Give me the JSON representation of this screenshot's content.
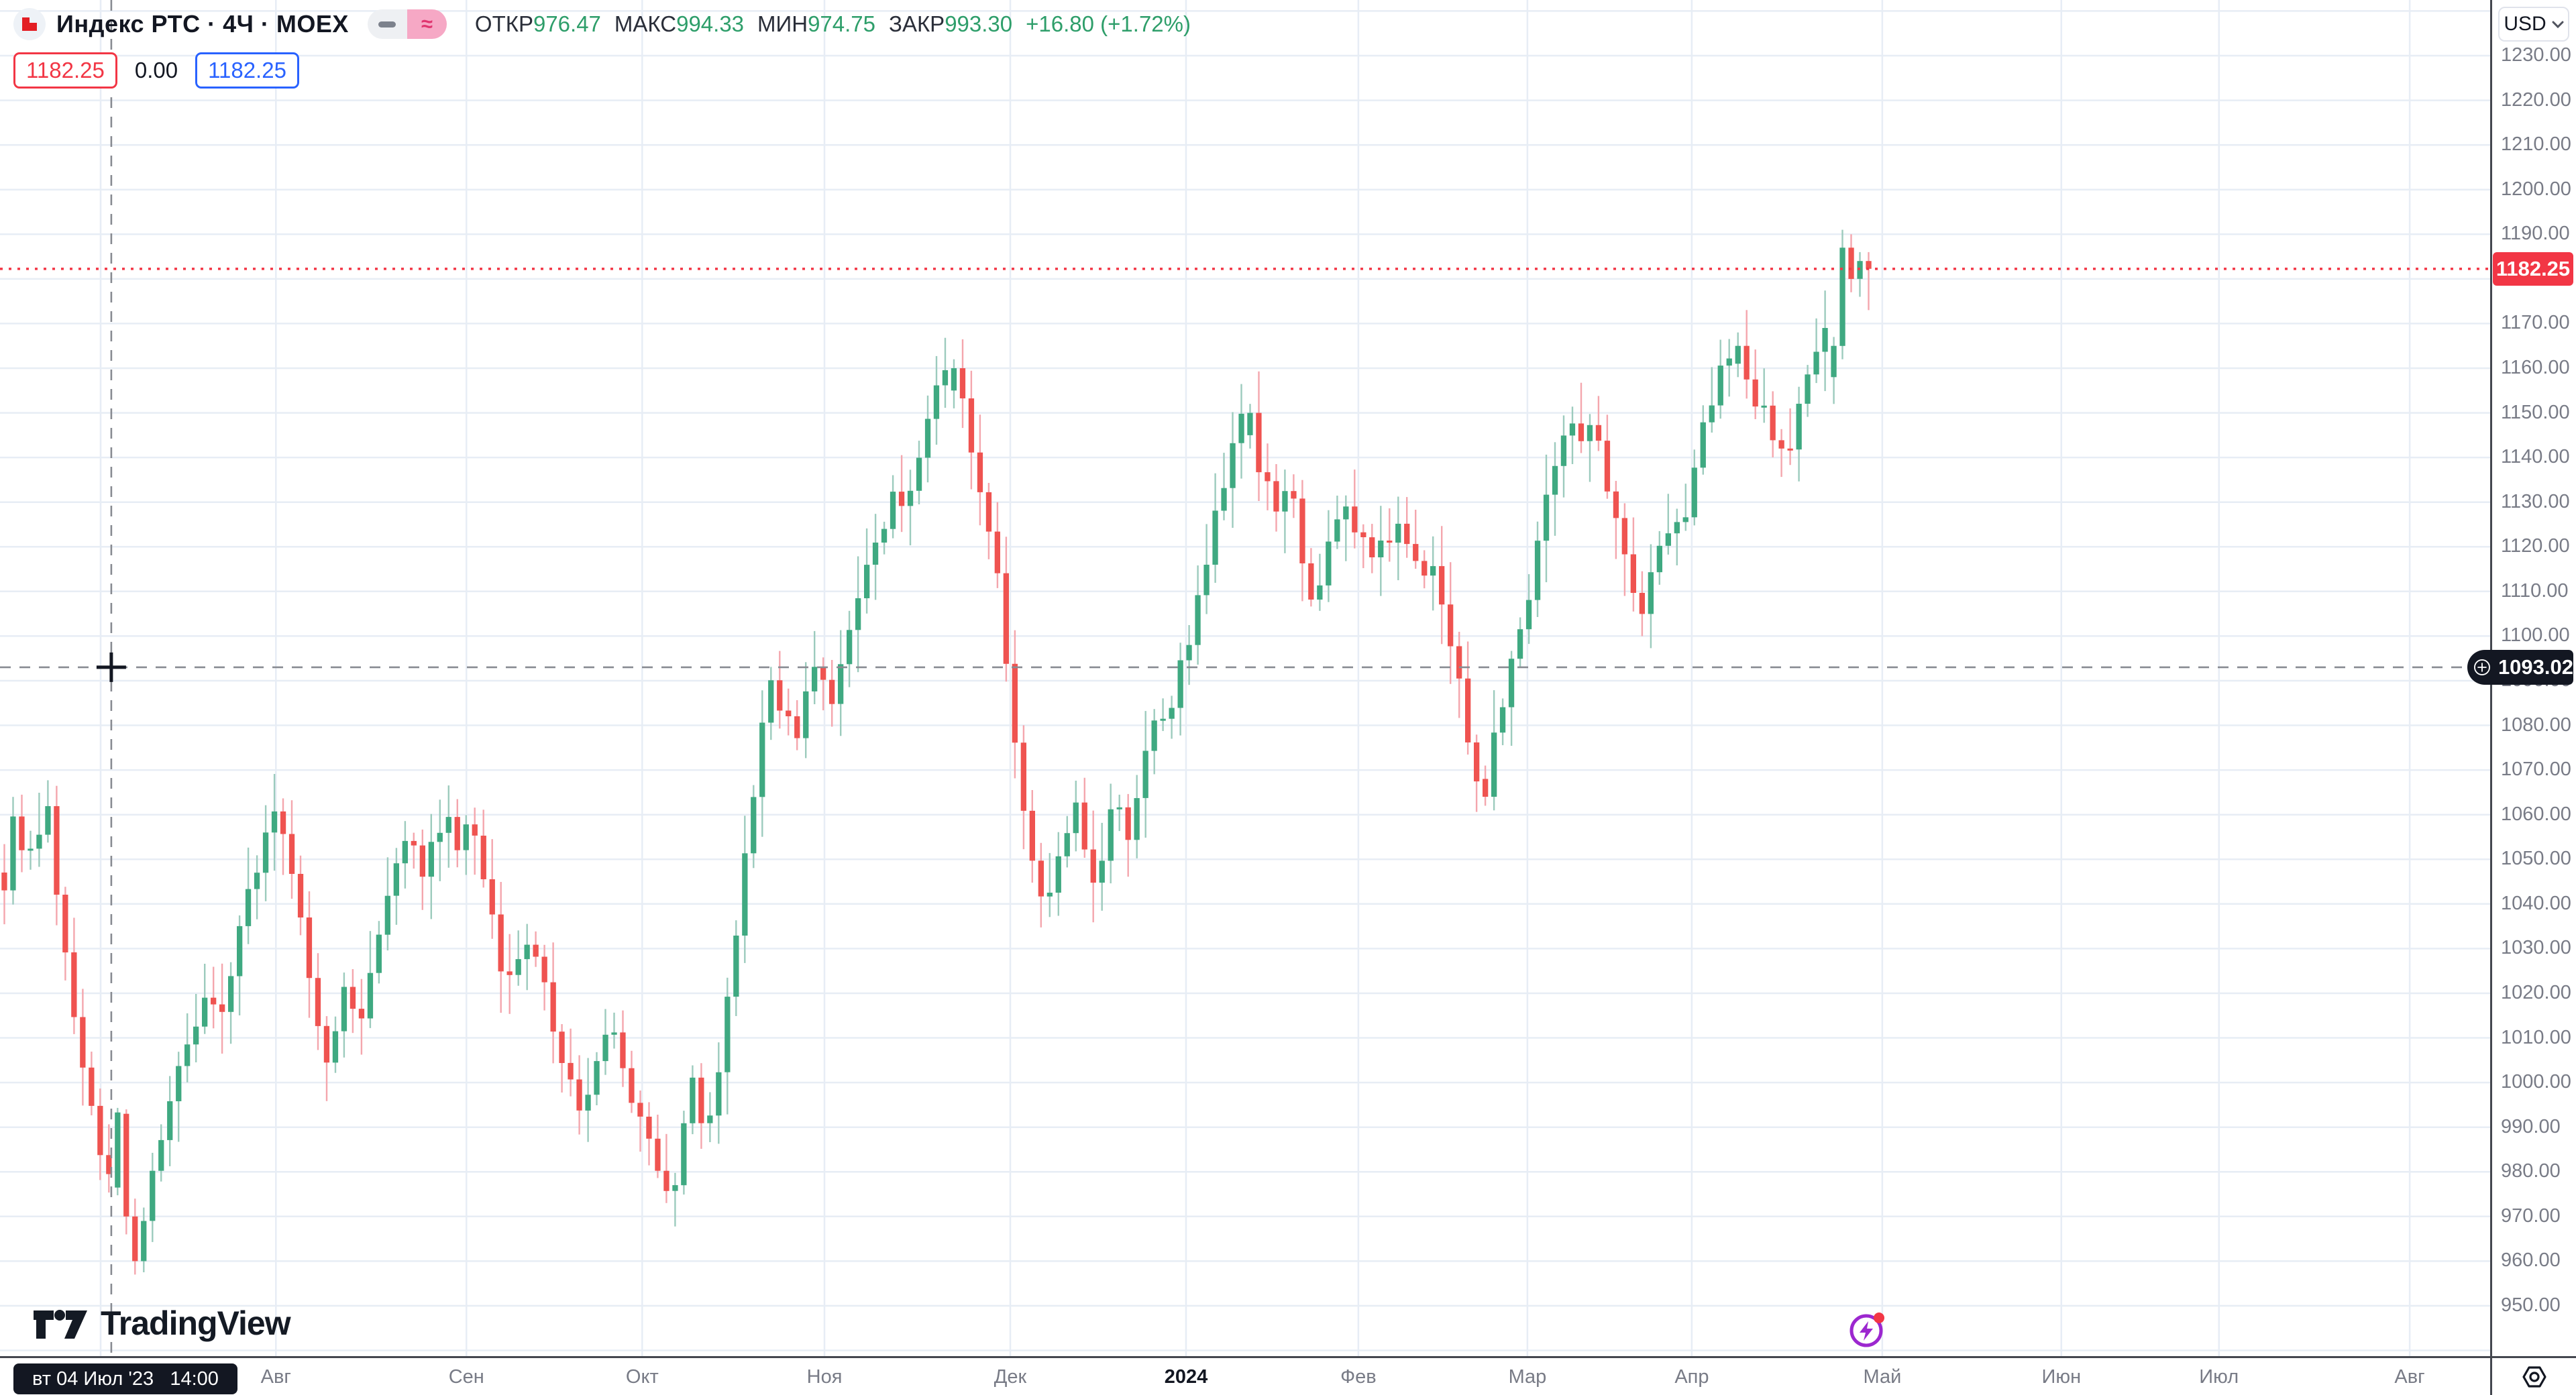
{
  "header": {
    "symbol_title": "Индекс РТС · 4Ч · MOEX",
    "chips": {
      "left_glyph": "",
      "right_glyph": "≈"
    },
    "ohlc": {
      "fields": [
        {
          "label": "ОТКР",
          "value": "976.47"
        },
        {
          "label": "МАКС",
          "value": "994.33"
        },
        {
          "label": "МИН",
          "value": "974.75"
        },
        {
          "label": "ЗАКР",
          "value": "993.30"
        }
      ],
      "change": "+16.80 (+1.72%)"
    },
    "row2": {
      "sell_value": "1182.25",
      "spread_value": "0.00",
      "buy_value": "1182.25"
    }
  },
  "price_scale": {
    "currency": "USD",
    "ticks": [
      "1230.00",
      "1220.00",
      "1210.00",
      "1200.00",
      "1190.00",
      "1180.00",
      "1170.00",
      "1160.00",
      "1150.00",
      "1140.00",
      "1130.00",
      "1120.00",
      "1110.00",
      "1100.00",
      "1090.00",
      "1080.00",
      "1070.00",
      "1060.00",
      "1050.00",
      "1040.00",
      "1030.00",
      "1020.00",
      "1010.00",
      "1000.00",
      "990.00",
      "980.00",
      "970.00",
      "960.00",
      "950.00"
    ],
    "last_price_label": "1182.25",
    "crosshair_price_label": "1093.02"
  },
  "time_scale": {
    "ticks": [
      {
        "label": "",
        "x": 0.0404
      },
      {
        "label": "Авг",
        "x": 0.1108
      },
      {
        "label": "Сен",
        "x": 0.1873
      },
      {
        "label": "Окт",
        "x": 0.2579
      },
      {
        "label": "Ноя",
        "x": 0.3311
      },
      {
        "label": "Дек",
        "x": 0.4057
      },
      {
        "label": "2024",
        "x": 0.4763,
        "bold": true
      },
      {
        "label": "Фев",
        "x": 0.5455
      },
      {
        "label": "Мар",
        "x": 0.6134
      },
      {
        "label": "Апр",
        "x": 0.6794
      },
      {
        "label": "Май",
        "x": 0.7559
      },
      {
        "label": "Июн",
        "x": 0.8278
      },
      {
        "label": "Июл",
        "x": 0.8911
      },
      {
        "label": "Авг",
        "x": 0.9677
      }
    ],
    "crosshair_time_label": "вт 04 Июл '23   14:00"
  },
  "watermark": "TradingView",
  "chart_data": {
    "type": "candlestick",
    "title": "Индекс РТС",
    "timeframe": "4Ч",
    "exchange": "MOEX",
    "currency": "USD",
    "ylim": [
      938,
      1242
    ],
    "grid": true,
    "last_price": 1182.25,
    "crosshair": {
      "price": 1093.02,
      "x_frac": 0.0447,
      "time": "вт 04 Июл '23 14:00"
    },
    "hovered_bar": {
      "open": 976.47,
      "high": 994.33,
      "low": 974.75,
      "close": 993.3,
      "change": "+16.80 (+1.72%)"
    },
    "num_bars": 215,
    "close_waypoints": [
      [
        0,
        1045
      ],
      [
        0.005,
        1058
      ],
      [
        0.011,
        1048
      ],
      [
        0.018,
        1056
      ],
      [
        0.023,
        1062
      ],
      [
        0.028,
        1044
      ],
      [
        0.032,
        1030
      ],
      [
        0.037,
        1015
      ],
      [
        0.042,
        1002
      ],
      [
        0.048,
        993
      ],
      [
        0.054,
        976
      ],
      [
        0.06,
        990
      ],
      [
        0.064,
        968
      ],
      [
        0.068,
        958
      ],
      [
        0.074,
        970
      ],
      [
        0.079,
        980
      ],
      [
        0.088,
        995
      ],
      [
        0.098,
        1008
      ],
      [
        0.107,
        1018
      ],
      [
        0.116,
        1015
      ],
      [
        0.125,
        1032
      ],
      [
        0.133,
        1046
      ],
      [
        0.145,
        1060
      ],
      [
        0.151,
        1056
      ],
      [
        0.16,
        1035
      ],
      [
        0.168,
        1012
      ],
      [
        0.175,
        1004
      ],
      [
        0.182,
        1022
      ],
      [
        0.189,
        1012
      ],
      [
        0.2,
        1032
      ],
      [
        0.209,
        1050
      ],
      [
        0.218,
        1058
      ],
      [
        0.224,
        1048
      ],
      [
        0.23,
        1056
      ],
      [
        0.237,
        1060
      ],
      [
        0.244,
        1052
      ],
      [
        0.251,
        1060
      ],
      [
        0.259,
        1042
      ],
      [
        0.268,
        1020
      ],
      [
        0.274,
        1028
      ],
      [
        0.281,
        1032
      ],
      [
        0.289,
        1022
      ],
      [
        0.298,
        1005
      ],
      [
        0.309,
        995
      ],
      [
        0.318,
        1003
      ],
      [
        0.325,
        1016
      ],
      [
        0.333,
        1000
      ],
      [
        0.342,
        990
      ],
      [
        0.351,
        982
      ],
      [
        0.358,
        975
      ],
      [
        0.364,
        988
      ],
      [
        0.37,
        1004
      ],
      [
        0.375,
        985
      ],
      [
        0.382,
        998
      ],
      [
        0.389,
        1022
      ],
      [
        0.396,
        1048
      ],
      [
        0.405,
        1075
      ],
      [
        0.412,
        1090
      ],
      [
        0.419,
        1082
      ],
      [
        0.426,
        1078
      ],
      [
        0.433,
        1096
      ],
      [
        0.439,
        1088
      ],
      [
        0.446,
        1085
      ],
      [
        0.452,
        1100
      ],
      [
        0.458,
        1110
      ],
      [
        0.465,
        1118
      ],
      [
        0.472,
        1126
      ],
      [
        0.478,
        1132
      ],
      [
        0.484,
        1128
      ],
      [
        0.491,
        1140
      ],
      [
        0.498,
        1152
      ],
      [
        0.505,
        1158
      ],
      [
        0.511,
        1160
      ],
      [
        0.516,
        1150
      ],
      [
        0.521,
        1138
      ],
      [
        0.526,
        1128
      ],
      [
        0.532,
        1118
      ],
      [
        0.536,
        1096
      ],
      [
        0.54,
        1085
      ],
      [
        0.544,
        1070
      ],
      [
        0.549,
        1052
      ],
      [
        0.554,
        1044
      ],
      [
        0.56,
        1042
      ],
      [
        0.566,
        1052
      ],
      [
        0.572,
        1060
      ],
      [
        0.576,
        1065
      ],
      [
        0.581,
        1046
      ],
      [
        0.586,
        1044
      ],
      [
        0.591,
        1056
      ],
      [
        0.596,
        1066
      ],
      [
        0.602,
        1052
      ],
      [
        0.607,
        1062
      ],
      [
        0.612,
        1072
      ],
      [
        0.618,
        1085
      ],
      [
        0.625,
        1082
      ],
      [
        0.63,
        1095
      ],
      [
        0.636,
        1100
      ],
      [
        0.642,
        1112
      ],
      [
        0.649,
        1125
      ],
      [
        0.656,
        1135
      ],
      [
        0.662,
        1147
      ],
      [
        0.667,
        1150
      ],
      [
        0.672,
        1140
      ],
      [
        0.677,
        1133
      ],
      [
        0.682,
        1126
      ],
      [
        0.688,
        1132
      ],
      [
        0.693,
        1128
      ],
      [
        0.698,
        1112
      ],
      [
        0.704,
        1108
      ],
      [
        0.709,
        1120
      ],
      [
        0.715,
        1126
      ],
      [
        0.721,
        1128
      ],
      [
        0.728,
        1122
      ],
      [
        0.735,
        1118
      ],
      [
        0.741,
        1122
      ],
      [
        0.747,
        1126
      ],
      [
        0.753,
        1120
      ],
      [
        0.759,
        1114
      ],
      [
        0.765,
        1118
      ],
      [
        0.77,
        1112
      ],
      [
        0.775,
        1098
      ],
      [
        0.781,
        1090
      ],
      [
        0.786,
        1072
      ],
      [
        0.791,
        1068
      ],
      [
        0.796,
        1064
      ],
      [
        0.8,
        1080
      ],
      [
        0.805,
        1088
      ],
      [
        0.811,
        1098
      ],
      [
        0.816,
        1102
      ],
      [
        0.821,
        1118
      ],
      [
        0.826,
        1128
      ],
      [
        0.832,
        1140
      ],
      [
        0.836,
        1146
      ],
      [
        0.84,
        1150
      ],
      [
        0.845,
        1144
      ],
      [
        0.849,
        1148
      ],
      [
        0.854,
        1146
      ],
      [
        0.858,
        1138
      ],
      [
        0.862,
        1128
      ],
      [
        0.867,
        1120
      ],
      [
        0.871,
        1114
      ],
      [
        0.875,
        1108
      ],
      [
        0.88,
        1106
      ],
      [
        0.884,
        1114
      ],
      [
        0.889,
        1120
      ],
      [
        0.893,
        1124
      ],
      [
        0.897,
        1128
      ],
      [
        0.902,
        1126
      ],
      [
        0.906,
        1136
      ],
      [
        0.911,
        1146
      ],
      [
        0.915,
        1152
      ],
      [
        0.919,
        1158
      ],
      [
        0.924,
        1162
      ],
      [
        0.928,
        1165
      ],
      [
        0.932,
        1160
      ],
      [
        0.937,
        1155
      ],
      [
        0.941,
        1152
      ],
      [
        0.946,
        1148
      ],
      [
        0.95,
        1145
      ],
      [
        0.954,
        1142
      ],
      [
        0.959,
        1142
      ],
      [
        0.963,
        1152
      ],
      [
        0.968,
        1160
      ],
      [
        0.972,
        1165
      ],
      [
        0.975,
        1170
      ],
      [
        0.979,
        1167
      ],
      [
        0.982,
        1172
      ],
      [
        0.986,
        1178
      ],
      [
        0.989,
        1188
      ],
      [
        0.992,
        1186
      ],
      [
        0.995,
        1184
      ],
      [
        1,
        1182.25
      ]
    ],
    "bar_overrides": {
      "13": [
        976.47,
        994.33,
        974.75,
        993.3
      ],
      "14": [
        993,
        994,
        966,
        970
      ],
      "15": [
        970,
        974,
        957,
        960
      ],
      "16": [
        960,
        972,
        957.5,
        969
      ],
      "109": [
        1155,
        1162,
        1151,
        1160
      ],
      "143": [
        1145,
        1152,
        1142,
        1150
      ],
      "170": [
        1068,
        1071,
        1062,
        1064
      ],
      "199": [
        1161,
        1168,
        1158,
        1165
      ],
      "210": [
        1158,
        1167,
        1152,
        1165
      ],
      "211": [
        1165,
        1191,
        1162,
        1187
      ],
      "212": [
        1187,
        1190,
        1177,
        1180
      ],
      "213": [
        1180,
        1186,
        1176,
        1184
      ],
      "214": [
        1184,
        1186,
        1173,
        1182.25
      ]
    },
    "colors": {
      "up": "#3fa981",
      "down": "#ef5350",
      "up_wick": "#9ccbbd",
      "down_wick": "#f4a6ad",
      "last_price_line": "#f23645",
      "crosshair": "#888b92",
      "grid": "#e7edf5"
    }
  }
}
